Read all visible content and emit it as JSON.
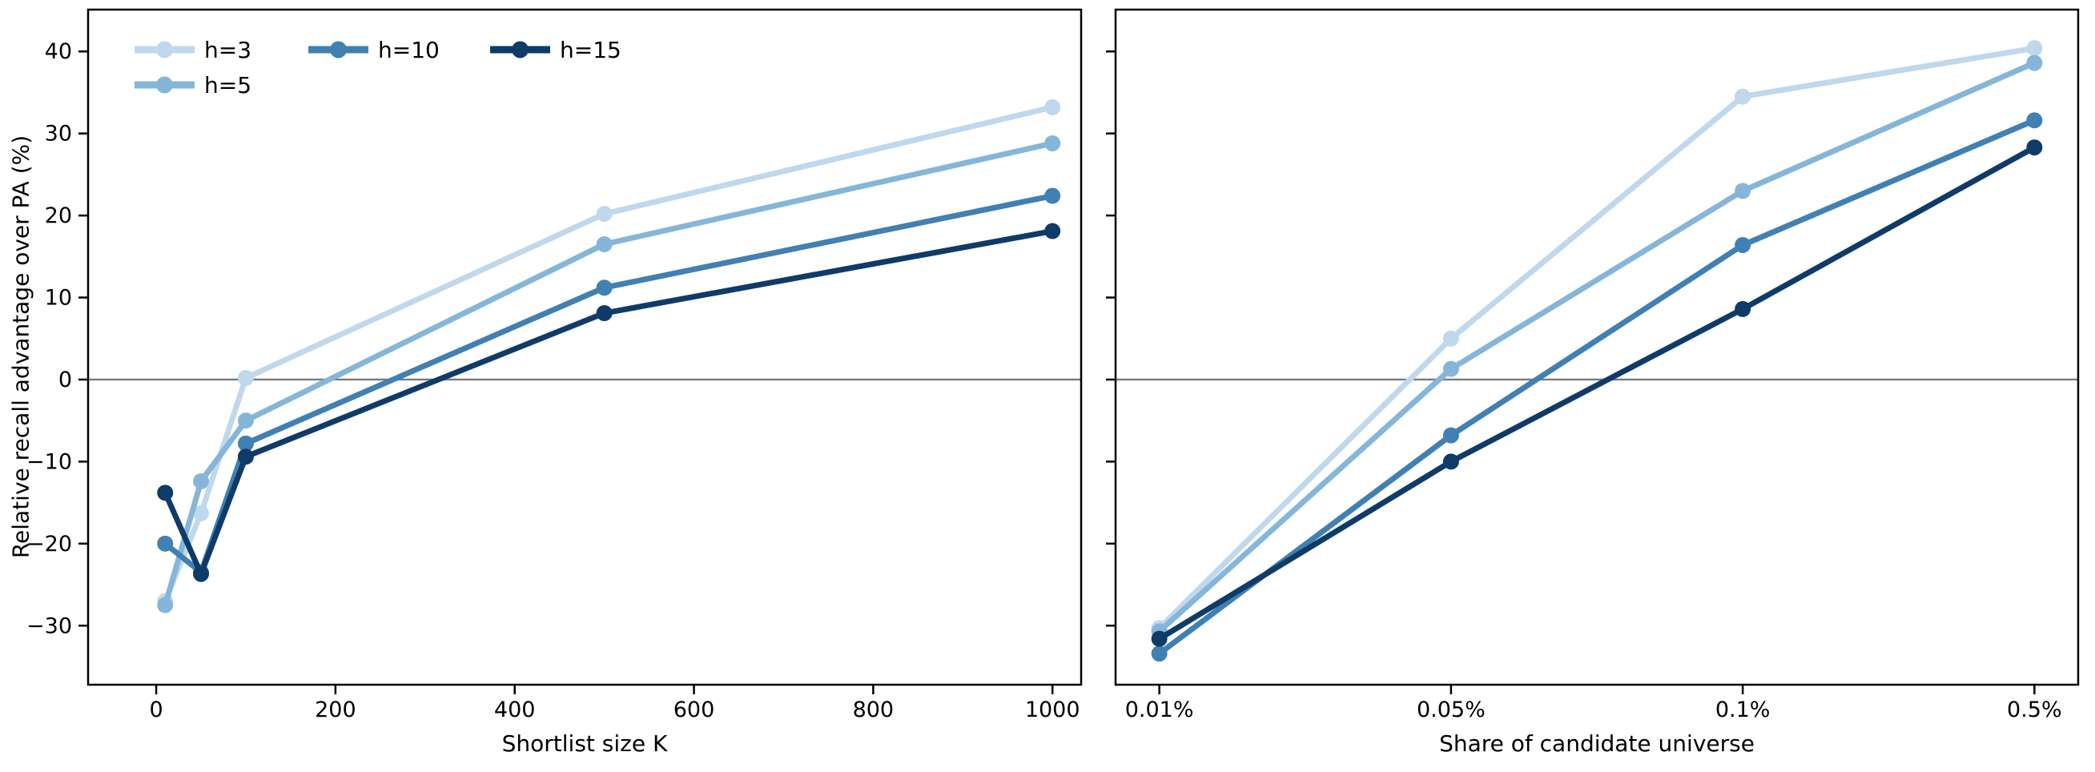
{
  "figure": {
    "background": "#ffffff",
    "text_color": "#000000",
    "spine_color": "#000000",
    "zero_line_color": "#7a7a7a"
  },
  "chart_data": [
    {
      "type": "line",
      "panel": "left",
      "xlabel": "Shortlist size K",
      "ylabel": "Relative recall advantage over PA (%)",
      "x": [
        10,
        50,
        100,
        500,
        1000
      ],
      "xlim": [
        -76,
        1032
      ],
      "ylim": [
        -37.2,
        45.1
      ],
      "xticks": [
        {
          "v": 0,
          "label": "0"
        },
        {
          "v": 200,
          "label": "200"
        },
        {
          "v": 400,
          "label": "400"
        },
        {
          "v": 600,
          "label": "600"
        },
        {
          "v": 800,
          "label": "800"
        },
        {
          "v": 1000,
          "label": "1000"
        }
      ],
      "yticks": [
        {
          "v": 40,
          "label": "40"
        },
        {
          "v": 30,
          "label": "30"
        },
        {
          "v": 20,
          "label": "20"
        },
        {
          "v": 10,
          "label": "10"
        },
        {
          "v": 0,
          "label": "0"
        },
        {
          "v": -10,
          "label": "−10"
        },
        {
          "v": -20,
          "label": "−20"
        },
        {
          "v": -30,
          "label": "−30"
        }
      ],
      "ytick_labels_visible": true,
      "zero_line": true,
      "grid": false,
      "legend_position": "upper left",
      "series": [
        {
          "name": "h=3",
          "color": "#bfd8ed",
          "values": [
            -27.0,
            -16.3,
            0.2,
            20.2,
            33.2
          ]
        },
        {
          "name": "h=5",
          "color": "#85b6d9",
          "values": [
            -27.5,
            -12.4,
            -5.0,
            16.5,
            28.8
          ]
        },
        {
          "name": "h=10",
          "color": "#4080b3",
          "values": [
            -20.0,
            -23.5,
            -7.8,
            11.2,
            22.4
          ]
        },
        {
          "name": "h=15",
          "color": "#0f3b69",
          "values": [
            -13.8,
            -23.7,
            -9.4,
            8.1,
            18.1
          ]
        }
      ]
    },
    {
      "type": "line",
      "panel": "right",
      "xlabel": "Share of candidate universe",
      "categories": [
        "0.01%",
        "0.05%",
        "0.1%",
        "0.5%"
      ],
      "x": [
        0,
        1,
        2,
        3
      ],
      "xlim": [
        -0.15,
        3.15
      ],
      "ylim": [
        -37.2,
        45.1
      ],
      "xticks": [
        {
          "v": 0,
          "label": "0.01%"
        },
        {
          "v": 1,
          "label": "0.05%"
        },
        {
          "v": 2,
          "label": "0.1%"
        },
        {
          "v": 3,
          "label": "0.5%"
        }
      ],
      "yticks": [
        {
          "v": 40,
          "label": "40"
        },
        {
          "v": 30,
          "label": "30"
        },
        {
          "v": 20,
          "label": "20"
        },
        {
          "v": 10,
          "label": "10"
        },
        {
          "v": 0,
          "label": "0"
        },
        {
          "v": -10,
          "label": "−10"
        },
        {
          "v": -20,
          "label": "−20"
        },
        {
          "v": -30,
          "label": "−30"
        }
      ],
      "ytick_labels_visible": false,
      "zero_line": true,
      "grid": false,
      "series": [
        {
          "name": "h=3",
          "color": "#bfd8ed",
          "values": [
            -30.3,
            5.0,
            34.5,
            40.4
          ]
        },
        {
          "name": "h=5",
          "color": "#85b6d9",
          "values": [
            -30.7,
            1.3,
            23.0,
            38.6
          ]
        },
        {
          "name": "h=10",
          "color": "#4080b3",
          "values": [
            -33.4,
            -6.8,
            16.4,
            31.6
          ]
        },
        {
          "name": "h=15",
          "color": "#0f3b69",
          "values": [
            -31.6,
            -10.0,
            8.6,
            28.3
          ]
        }
      ]
    }
  ]
}
